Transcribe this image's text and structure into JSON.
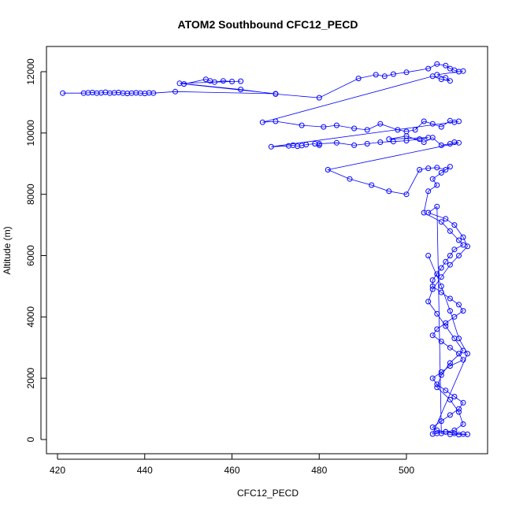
{
  "chart_data": {
    "type": "line",
    "title": "ATOM2 Southbound CFC12_PECD",
    "xlabel": "CFC12_PECD",
    "ylabel": "Altitude (m)",
    "xlim": [
      421,
      515
    ],
    "ylim": [
      0,
      12300
    ],
    "xticks": [
      420,
      440,
      460,
      480,
      500
    ],
    "yticks": [
      0,
      2000,
      4000,
      6000,
      8000,
      10000,
      12000
    ],
    "series_color": "#0000ff",
    "grid": false,
    "legend": "none",
    "series": [
      {
        "name": "",
        "x": [
          421.2,
          426,
          427,
          428,
          429,
          430,
          431,
          432,
          433,
          434,
          435,
          436,
          437,
          438,
          439,
          440,
          441,
          442,
          447,
          470,
          449,
          454,
          455,
          456,
          458,
          460,
          462,
          448,
          462,
          470,
          480,
          489,
          493,
          495,
          497,
          500,
          505,
          507,
          509,
          510,
          511,
          512,
          513,
          507,
          509,
          510,
          508,
          506,
          467,
          470,
          476,
          481,
          484,
          488,
          491,
          494,
          498,
          500,
          502,
          504,
          506,
          508,
          510,
          511,
          512,
          469,
          473,
          474,
          475,
          476,
          477,
          479,
          480,
          480,
          484,
          488,
          491,
          494,
          497,
          500,
          503,
          505,
          496,
          500,
          504,
          506,
          508,
          510,
          511,
          512,
          482,
          487,
          492,
          496,
          500,
          503,
          505,
          507,
          509,
          510,
          508,
          506,
          507,
          505,
          504,
          508,
          510,
          512,
          513,
          511,
          510,
          509,
          508,
          507,
          506,
          506,
          508,
          510,
          512,
          513,
          511,
          509,
          507,
          506,
          508,
          510,
          512,
          513,
          510,
          508,
          506,
          507,
          509,
          511,
          513,
          512,
          510,
          508,
          506,
          507,
          509,
          511,
          513,
          514,
          512,
          510,
          508,
          507,
          505,
          509,
          511,
          513,
          514,
          512,
          510,
          508,
          506,
          505,
          507,
          509,
          511,
          513,
          510,
          508,
          507,
          510,
          512,
          513,
          511,
          509,
          507,
          506,
          514,
          512,
          510,
          508,
          505
        ],
        "y": [
          11300,
          11300,
          11310,
          11320,
          11300,
          11310,
          11330,
          11300,
          11310,
          11320,
          11300,
          11290,
          11300,
          11310,
          11300,
          11290,
          11310,
          11300,
          11350,
          11280,
          11600,
          11750,
          11700,
          11660,
          11700,
          11680,
          11690,
          11620,
          11420,
          11270,
          11150,
          11780,
          11900,
          11850,
          11920,
          11980,
          12100,
          12250,
          12200,
          12100,
          12050,
          12000,
          12020,
          11900,
          11800,
          11700,
          11750,
          11850,
          10350,
          10380,
          10250,
          10200,
          10250,
          10150,
          10100,
          10300,
          10100,
          10050,
          10100,
          10380,
          10300,
          10200,
          10400,
          10350,
          10380,
          9550,
          9580,
          9600,
          9570,
          9590,
          9620,
          9650,
          9600,
          9650,
          9680,
          9600,
          9650,
          9700,
          9720,
          9750,
          9800,
          9850,
          9800,
          9900,
          9700,
          9850,
          9600,
          9650,
          9700,
          9680,
          8800,
          8500,
          8300,
          8100,
          8000,
          8800,
          8850,
          8870,
          8800,
          8900,
          8700,
          8500,
          8300,
          8100,
          7400,
          7100,
          6800,
          6500,
          6350,
          6200,
          6000,
          5800,
          5600,
          5400,
          5200,
          5000,
          4800,
          4600,
          4400,
          4200,
          4000,
          3800,
          3600,
          3400,
          3200,
          3000,
          2800,
          2600,
          2400,
          2200,
          2000,
          1800,
          1600,
          1400,
          1200,
          1000,
          800,
          600,
          400,
          300,
          250,
          200,
          180,
          170,
          160,
          170,
          200,
          7600,
          7400,
          7200,
          7000,
          6600,
          6300,
          6000,
          5700,
          5300,
          4900,
          4500,
          4100,
          3700,
          3300,
          2900,
          2500,
          2100,
          1700,
          1300,
          900,
          500,
          300,
          250,
          200,
          180,
          2800,
          3300,
          4200,
          5000,
          6000
        ]
      }
    ]
  }
}
